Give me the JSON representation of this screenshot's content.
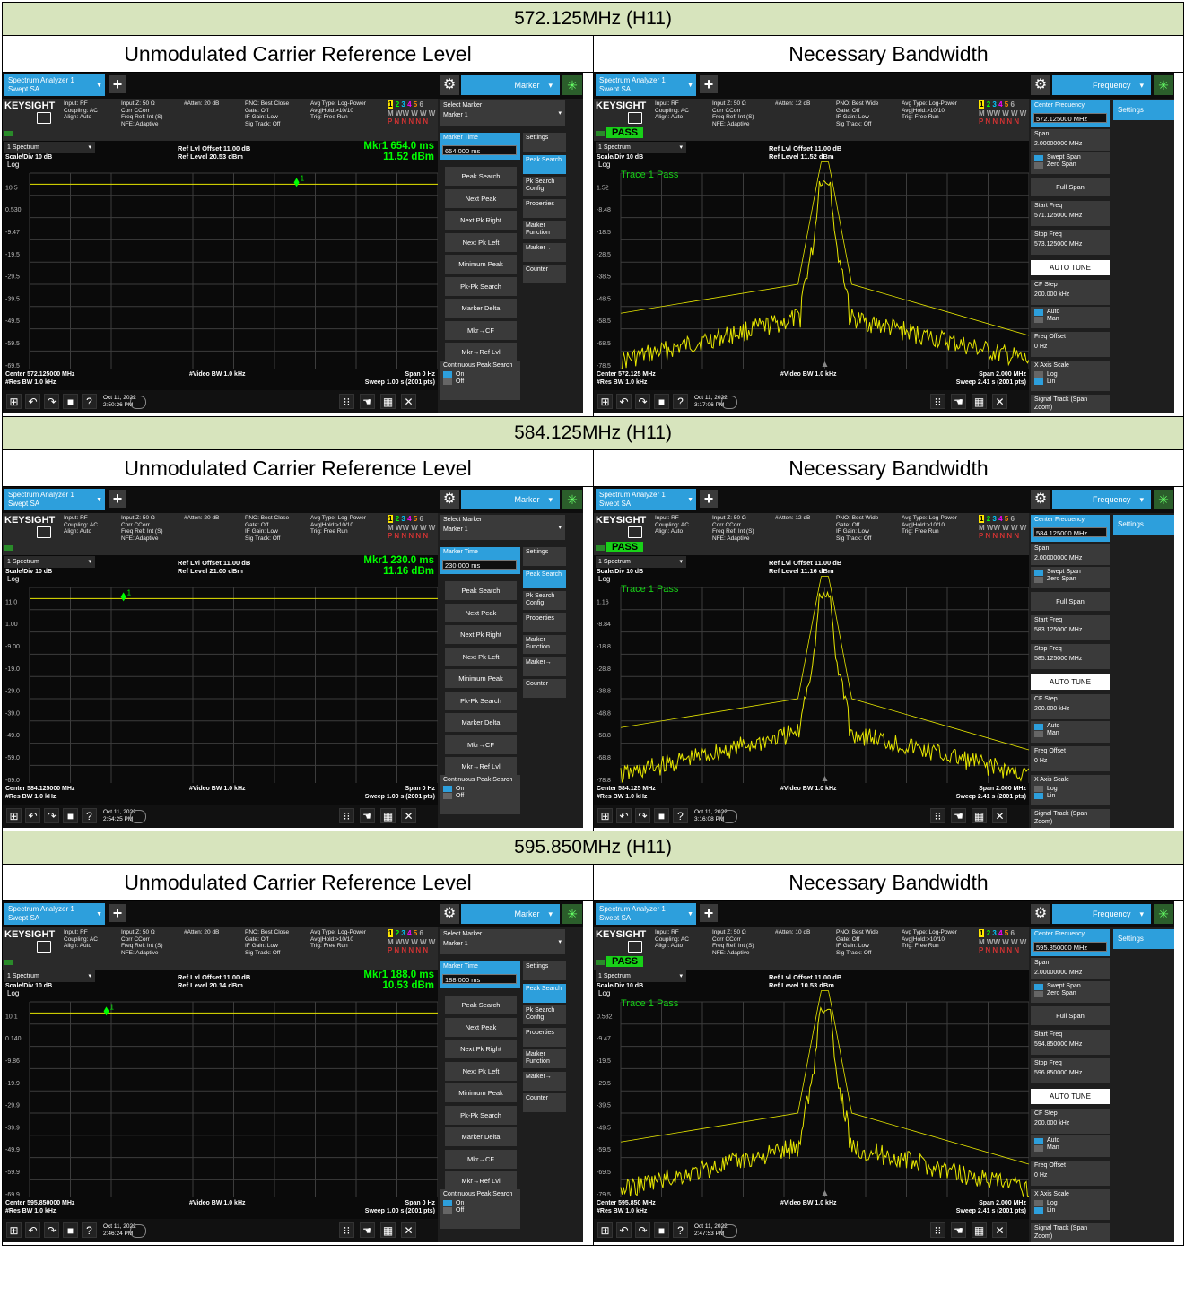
{
  "sections": [
    {
      "title": "572.125MHz (H11)",
      "left_caption": "Unmodulated Carrier Reference Level",
      "right_caption": "Necessary Bandwidth",
      "unmod": {
        "atten": "#Atten: 20 dB",
        "pno": "PNO: Best Close",
        "ref_offset": "Ref Lvl Offset 11.00 dB",
        "ref_level": "Ref Level 20.53 dBm",
        "mkr_label": "Mkr1  654.0 ms",
        "mkr_value": "11.52 dBm",
        "marker_time": "654.000 ms",
        "y_ticks": [
          "10.5",
          "0.530",
          "-9.47",
          "-19.5",
          "-29.5",
          "-39.5",
          "-49.5",
          "-59.5",
          "-69.5"
        ],
        "center": "Center 572.125000 MHz",
        "date": "Oct 11, 2022",
        "time": "2:50:26 PM"
      },
      "nbw": {
        "atten": "#Atten: 12 dB",
        "ref_offset": "Ref Lvl Offset 11.00 dB",
        "ref_level": "Ref Level 11.52 dBm",
        "center_freq": "572.125000 MHz",
        "start_freq": "571.125000 MHz",
        "stop_freq": "573.125000 MHz",
        "y_ticks": [
          "1.52",
          "-8.48",
          "-18.5",
          "-28.5",
          "-38.5",
          "-48.5",
          "-58.5",
          "-68.5",
          "-78.5"
        ],
        "center": "Center 572.125 MHz",
        "date": "Oct 11, 2022",
        "time": "3:17:06 PM"
      }
    },
    {
      "title": "584.125MHz (H11)",
      "left_caption": "Unmodulated Carrier Reference Level",
      "right_caption": "Necessary Bandwidth",
      "unmod": {
        "atten": "#Atten: 20 dB",
        "pno": "PNO: Best Close",
        "ref_offset": "Ref Lvl Offset 11.00 dB",
        "ref_level": "Ref Level 21.00 dBm",
        "mkr_label": "Mkr1  230.0 ms",
        "mkr_value": "11.16 dBm",
        "marker_time": "230.000 ms",
        "y_ticks": [
          "11.0",
          "1.00",
          "-9.00",
          "-19.0",
          "-29.0",
          "-39.0",
          "-49.0",
          "-59.0",
          "-69.0"
        ],
        "center": "Center 584.125000 MHz",
        "date": "Oct 11, 2022",
        "time": "2:54:25 PM"
      },
      "nbw": {
        "atten": "#Atten: 12 dB",
        "ref_offset": "Ref Lvl Offset 11.00 dB",
        "ref_level": "Ref Level 11.16 dBm",
        "center_freq": "584.125000 MHz",
        "start_freq": "583.125000 MHz",
        "stop_freq": "585.125000 MHz",
        "y_ticks": [
          "1.16",
          "-8.84",
          "-18.8",
          "-28.8",
          "-38.8",
          "-48.8",
          "-58.8",
          "-68.8",
          "-78.8"
        ],
        "center": "Center 584.125 MHz",
        "date": "Oct 11, 2022",
        "time": "3:16:08 PM"
      }
    },
    {
      "title": "595.850MHz (H11)",
      "left_caption": "Unmodulated Carrier Reference Level",
      "right_caption": "Necessary Bandwidth",
      "unmod": {
        "atten": "#Atten: 20 dB",
        "pno": "PNO: Best Close",
        "ref_offset": "Ref Lvl Offset 11.00 dB",
        "ref_level": "Ref Level 20.14 dBm",
        "mkr_label": "Mkr1  188.0 ms",
        "mkr_value": "10.53 dBm",
        "marker_time": "188.000 ms",
        "y_ticks": [
          "10.1",
          "0.140",
          "-9.86",
          "-19.9",
          "-29.9",
          "-39.9",
          "-49.9",
          "-59.9",
          "-69.9"
        ],
        "center": "Center 595.850000 MHz",
        "date": "Oct 11, 2022",
        "time": "2:46:24 PM"
      },
      "nbw": {
        "atten": "#Atten: 10 dB",
        "ref_offset": "Ref Lvl Offset 11.00 dB",
        "ref_level": "Ref Level 10.53 dBm",
        "center_freq": "595.850000 MHz",
        "start_freq": "594.850000 MHz",
        "stop_freq": "596.850000 MHz",
        "y_ticks": [
          "0.532",
          "-9.47",
          "-19.5",
          "-29.5",
          "-39.5",
          "-49.5",
          "-59.5",
          "-69.5",
          "-79.5"
        ],
        "center": "Center 595.850 MHz",
        "date": "Oct 11, 2022",
        "time": "2:47:53 PM"
      }
    }
  ],
  "common": {
    "tab_line1": "Spectrum Analyzer 1",
    "tab_line2": "Swept SA",
    "logo": "KEYSIGHT",
    "input_col": [
      "Input: RF",
      "Coupling: AC",
      "Align: Auto"
    ],
    "imp_col": [
      "Input Z: 50 Ω",
      "Corr CCorr",
      "Freq Ref: Int (S)",
      "NFE: Adaptive"
    ],
    "gate_col": [
      "Gate: Off",
      "IF Gain: Low",
      "Sig Track: Off"
    ],
    "pno_wide": "PNO: Best Wide",
    "avg_col": [
      "Avg Type: Log-Power",
      "Avg|Hold:>10/10",
      "Trig: Free Run"
    ],
    "trace_nums": [
      "1",
      "2",
      "3",
      "4",
      "5",
      "6"
    ],
    "trace_row2": "M WW W W W",
    "trace_row3": "P N N N N N",
    "pass_badge": "PASS",
    "spectrum_select": "1 Spectrum",
    "scale_div": "Scale/Div 10 dB",
    "log_label": "Log",
    "trace_pass": "Trace 1 Pass",
    "marker_menu": "Marker",
    "frequency_menu": "Frequency",
    "res_bw": "#Res BW 1.0 kHz",
    "video_bw": "#Video BW 1.0 kHz",
    "span_zero": "Span 0 Hz",
    "sweep_zero": "Sweep 1.00 s (2001 pts)",
    "span_nbw": "Span 2.000 MHz",
    "sweep_nbw": "Sweep 2.41 s (2001 pts)",
    "marker_keys": {
      "select_marker": "Select Marker",
      "marker_1": "Marker 1",
      "marker_time": "Marker Time",
      "buttons": [
        "Peak Search",
        "Next Peak",
        "Next Pk Right",
        "Next Pk Left",
        "Minimum Peak",
        "Pk-Pk Search",
        "Marker Delta",
        "Mkr→CF",
        "Mkr→Ref Lvl"
      ],
      "continuous": "Continuous Peak Search",
      "on": "On",
      "off": "Off",
      "tabs": [
        "Settings",
        "Peak Search",
        "Pk Search Config",
        "Properties",
        "Marker Function",
        "Marker→",
        "Counter"
      ]
    },
    "freq_keys": {
      "center_frequency": "Center Frequency",
      "span": "Span",
      "span_value": "2.00000000 MHz",
      "swept_span": "Swept Span",
      "zero_span": "Zero Span",
      "full_span": "Full Span",
      "start_freq": "Start Freq",
      "stop_freq": "Stop Freq",
      "auto_tune": "AUTO TUNE",
      "cf_step": "CF Step",
      "cf_step_value": "200.000 kHz",
      "auto": "Auto",
      "man": "Man",
      "freq_offset": "Freq Offset",
      "freq_offset_value": "0 Hz",
      "x_axis_scale": "X Axis Scale",
      "log": "Log",
      "lin": "Lin",
      "signal_track": "Signal Track (Span Zoom)",
      "settings": "Settings"
    },
    "colors": {
      "header_bg": "#d7e4bd",
      "accent": "#2d9fdc",
      "trace": "#e6e600",
      "pass": "#18d018",
      "marker_text": "#00ff00"
    },
    "icons": [
      "windows-icon",
      "undo-icon",
      "redo-icon",
      "folder-icon",
      "help-icon",
      "chat-icon",
      "keypad-icon",
      "touch-icon",
      "window-icon",
      "fullscreen-icon"
    ]
  }
}
